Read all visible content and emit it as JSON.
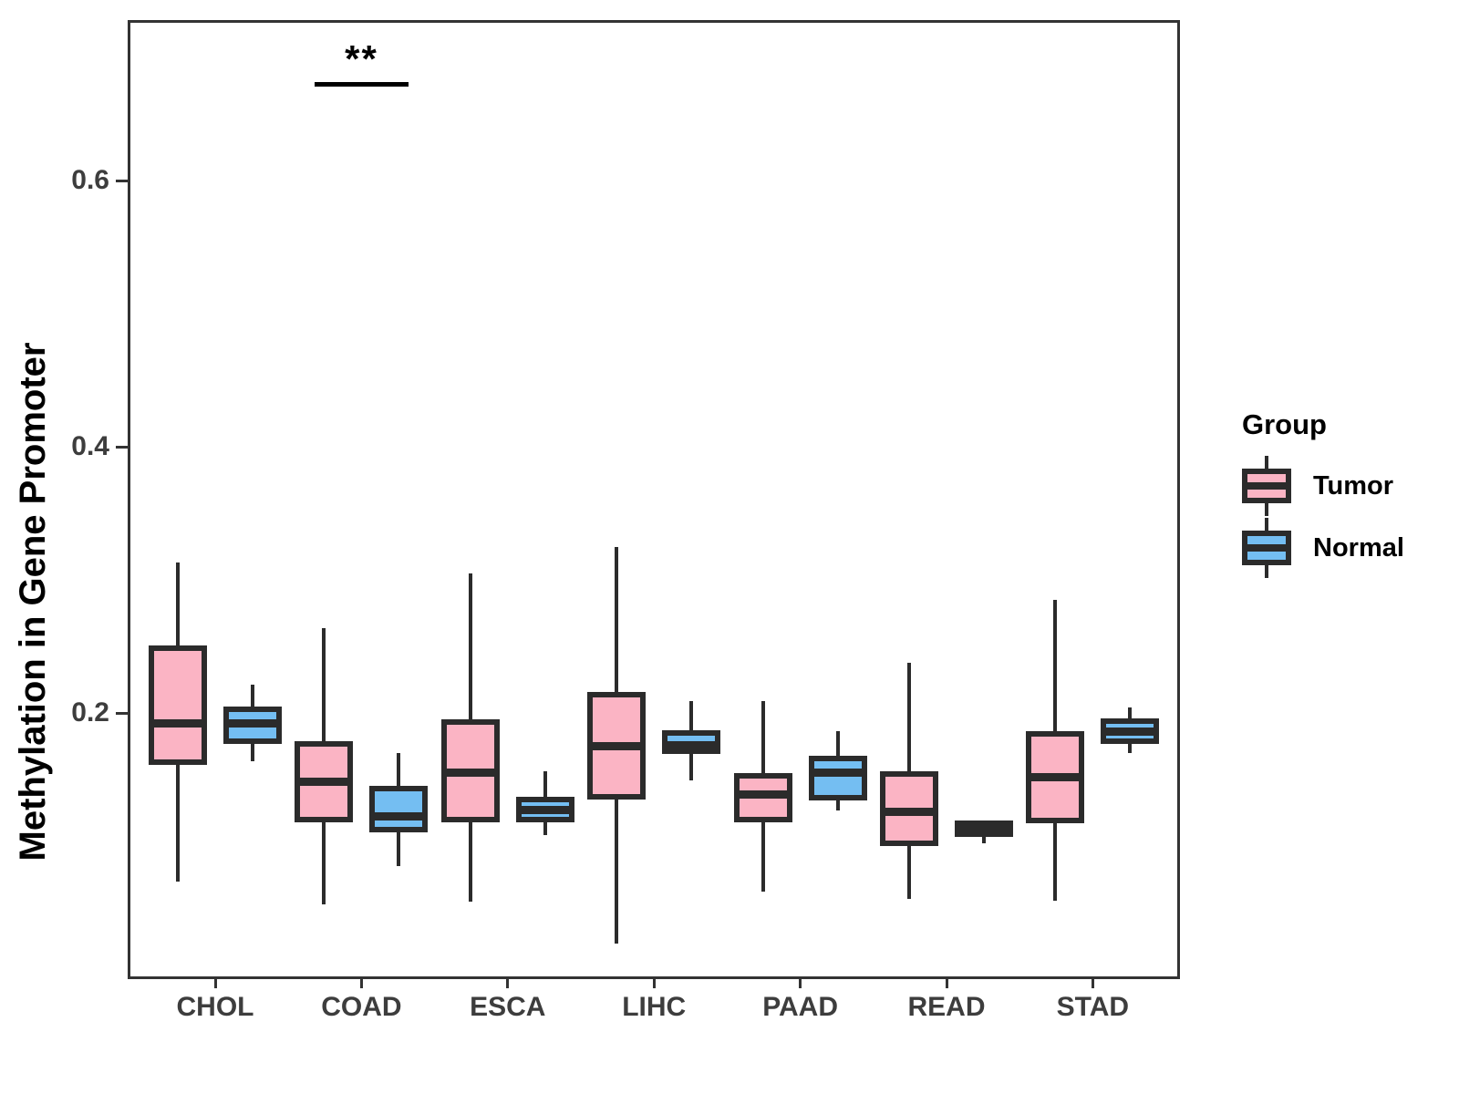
{
  "chart_data": {
    "type": "boxplot",
    "title": "",
    "xlabel": "",
    "ylabel": "Methylation in Gene Promoter",
    "ylim": [
      0,
      0.72
    ],
    "ytick_values": [
      0.2,
      0.4,
      0.6
    ],
    "ytick_labels": [
      "0.2",
      "0.4",
      "0.6"
    ],
    "grid": false,
    "legend_title": "Group",
    "legend_position": "right",
    "categories": [
      "CHOL",
      "COAD",
      "ESCA",
      "LIHC",
      "PAAD",
      "READ",
      "STAD"
    ],
    "series": [
      {
        "name": "Tumor",
        "color": "#FBB4C4",
        "boxes": [
          {
            "low": 0.073,
            "q1": 0.161,
            "median": 0.192,
            "q3": 0.251,
            "high": 0.313
          },
          {
            "low": 0.056,
            "q1": 0.118,
            "median": 0.148,
            "q3": 0.179,
            "high": 0.264
          },
          {
            "low": 0.058,
            "q1": 0.118,
            "median": 0.155,
            "q3": 0.195,
            "high": 0.305
          },
          {
            "low": 0.027,
            "q1": 0.135,
            "median": 0.175,
            "q3": 0.216,
            "high": 0.325
          },
          {
            "low": 0.066,
            "q1": 0.118,
            "median": 0.139,
            "q3": 0.155,
            "high": 0.209
          },
          {
            "low": 0.06,
            "q1": 0.1,
            "median": 0.126,
            "q3": 0.156,
            "high": 0.238
          },
          {
            "low": 0.059,
            "q1": 0.117,
            "median": 0.152,
            "q3": 0.186,
            "high": 0.285
          }
        ]
      },
      {
        "name": "Normal",
        "color": "#74BEF2",
        "boxes": [
          {
            "low": 0.164,
            "q1": 0.177,
            "median": 0.192,
            "q3": 0.205,
            "high": 0.221
          },
          {
            "low": 0.085,
            "q1": 0.11,
            "median": 0.122,
            "q3": 0.145,
            "high": 0.17
          },
          {
            "low": 0.108,
            "q1": 0.118,
            "median": 0.127,
            "q3": 0.137,
            "high": 0.156
          },
          {
            "low": 0.149,
            "q1": 0.169,
            "median": 0.176,
            "q3": 0.187,
            "high": 0.209
          },
          {
            "low": 0.127,
            "q1": 0.134,
            "median": 0.155,
            "q3": 0.168,
            "high": 0.186
          },
          {
            "low": 0.102,
            "q1": 0.107,
            "median": 0.113,
            "q3": 0.119,
            "high": 0.119
          },
          {
            "low": 0.17,
            "q1": 0.177,
            "median": 0.186,
            "q3": 0.196,
            "high": 0.204
          }
        ]
      }
    ],
    "significance": [
      {
        "category": "COAD",
        "label": "**"
      }
    ],
    "colors": {
      "box_line": "#2B2B2B",
      "panel_border": "#333333",
      "tick_text": "#3D3D3D",
      "text": "#000000",
      "background": "#FFFFFF"
    }
  }
}
